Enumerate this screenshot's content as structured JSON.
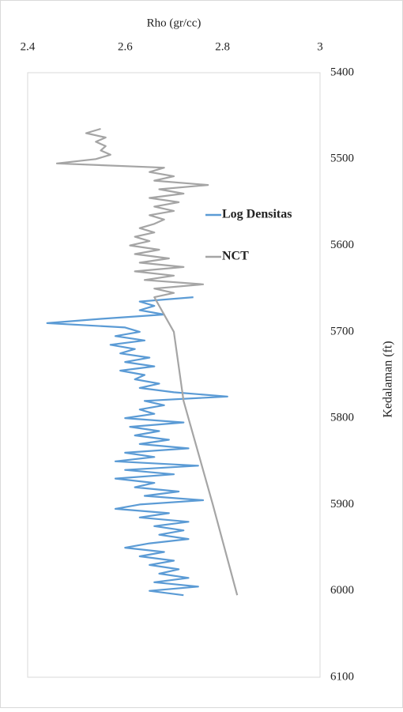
{
  "chart_data": {
    "type": "line",
    "y_label": "Rho (gr/cc)",
    "x_label": "Kedalaman (ft)",
    "ylim": [
      2.4,
      3
    ],
    "yticks": [
      2.4,
      2.6,
      2.8,
      3
    ],
    "value_axis_side": "top",
    "xlim": [
      5400,
      6100
    ],
    "xticks": [
      5400,
      5500,
      5600,
      5700,
      5800,
      5900,
      6000,
      6100
    ],
    "depth_axis_side": "right",
    "grid": false,
    "legend": "right",
    "series": [
      {
        "name": "Log Densitas",
        "color": "#5b9bd5",
        "x": [
          5660,
          5665,
          5670,
          5675,
          5680,
          5685,
          5690,
          5695,
          5700,
          5705,
          5710,
          5715,
          5720,
          5725,
          5730,
          5735,
          5740,
          5745,
          5750,
          5755,
          5760,
          5765,
          5770,
          5775,
          5780,
          5785,
          5790,
          5795,
          5800,
          5805,
          5810,
          5815,
          5820,
          5825,
          5830,
          5835,
          5840,
          5845,
          5850,
          5855,
          5860,
          5865,
          5870,
          5875,
          5880,
          5885,
          5890,
          5895,
          5900,
          5905,
          5910,
          5915,
          5920,
          5925,
          5930,
          5935,
          5940,
          5945,
          5950,
          5955,
          5960,
          5965,
          5970,
          5975,
          5980,
          5985,
          5990,
          5995,
          6000,
          6005
        ],
        "values": [
          2.74,
          2.63,
          2.66,
          2.63,
          2.68,
          2.55,
          2.44,
          2.6,
          2.63,
          2.58,
          2.64,
          2.57,
          2.62,
          2.59,
          2.65,
          2.6,
          2.66,
          2.59,
          2.64,
          2.62,
          2.67,
          2.63,
          2.7,
          2.81,
          2.64,
          2.68,
          2.63,
          2.66,
          2.6,
          2.72,
          2.61,
          2.67,
          2.62,
          2.69,
          2.63,
          2.73,
          2.6,
          2.66,
          2.58,
          2.75,
          2.6,
          2.7,
          2.58,
          2.66,
          2.62,
          2.71,
          2.64,
          2.76,
          2.63,
          2.58,
          2.69,
          2.63,
          2.73,
          2.66,
          2.72,
          2.67,
          2.73,
          2.65,
          2.6,
          2.68,
          2.63,
          2.7,
          2.65,
          2.71,
          2.67,
          2.73,
          2.66,
          2.75,
          2.65,
          2.72
        ]
      },
      {
        "name": "NCT",
        "color": "#a5a5a5",
        "x": [
          5465,
          5470,
          5475,
          5480,
          5485,
          5490,
          5495,
          5500,
          5505,
          5510,
          5515,
          5520,
          5525,
          5530,
          5535,
          5540,
          5545,
          5550,
          5555,
          5560,
          5565,
          5570,
          5575,
          5580,
          5585,
          5590,
          5595,
          5600,
          5605,
          5610,
          5615,
          5620,
          5625,
          5630,
          5635,
          5640,
          5645,
          5650,
          5655,
          5660,
          5700,
          5780,
          5900,
          6005
        ],
        "values": [
          2.55,
          2.52,
          2.56,
          2.54,
          2.56,
          2.55,
          2.57,
          2.54,
          2.46,
          2.68,
          2.65,
          2.7,
          2.66,
          2.77,
          2.67,
          2.72,
          2.65,
          2.71,
          2.66,
          2.7,
          2.65,
          2.68,
          2.66,
          2.63,
          2.66,
          2.62,
          2.65,
          2.61,
          2.67,
          2.62,
          2.69,
          2.63,
          2.72,
          2.62,
          2.7,
          2.64,
          2.76,
          2.66,
          2.7,
          2.66,
          2.7,
          2.72,
          2.78,
          2.83
        ]
      }
    ]
  }
}
